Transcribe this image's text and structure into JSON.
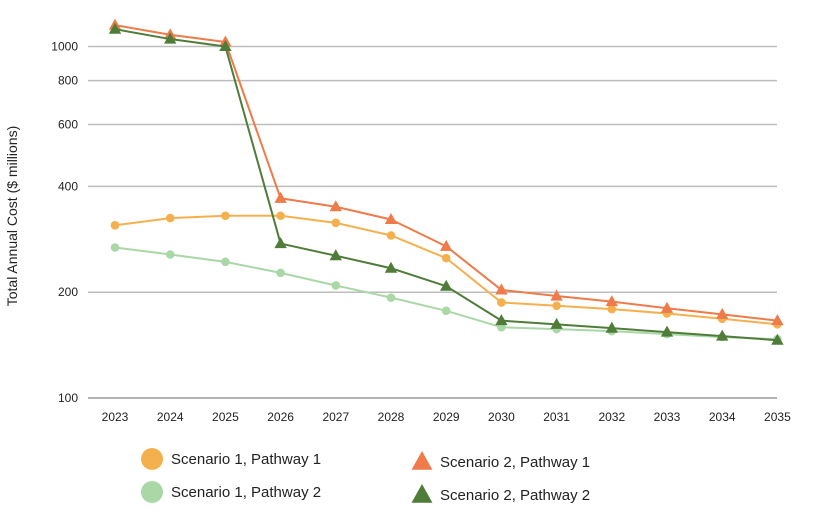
{
  "chart_data": {
    "type": "line",
    "title": "",
    "xlabel": "",
    "ylabel": "Total Annual Cost ($ millions)",
    "yscale": "log",
    "ylim": [
      100,
      1200
    ],
    "yticks": [
      100,
      200,
      400,
      600,
      800,
      1000
    ],
    "grid": true,
    "legend_position": "bottom",
    "x": [
      "2023",
      "2024",
      "2025",
      "2026",
      "2027",
      "2028",
      "2029",
      "2030",
      "2031",
      "2032",
      "2033",
      "2034",
      "2035"
    ],
    "series": [
      {
        "name": "Scenario 1, Pathway 1",
        "color": "#F5B04E",
        "marker": "circle",
        "values": [
          310,
          325,
          330,
          330,
          315,
          290,
          250,
          187,
          183,
          179,
          174,
          168,
          162
        ]
      },
      {
        "name": "Scenario 1, Pathway 2",
        "color": "#A9D8A6",
        "marker": "circle",
        "values": [
          268,
          256,
          244,
          227,
          209,
          193,
          177,
          159,
          157,
          155,
          152,
          149,
          147
        ]
      },
      {
        "name": "Scenario 2, Pathway 1",
        "color": "#EF7A4A",
        "marker": "triangle",
        "values": [
          1150,
          1080,
          1030,
          370,
          350,
          322,
          270,
          203,
          195,
          188,
          180,
          173,
          166
        ]
      },
      {
        "name": "Scenario 2, Pathway 2",
        "color": "#4F7D39",
        "marker": "triangle",
        "values": [
          1120,
          1050,
          1000,
          275,
          254,
          234,
          208,
          166,
          162,
          158,
          154,
          150,
          146
        ]
      }
    ]
  }
}
